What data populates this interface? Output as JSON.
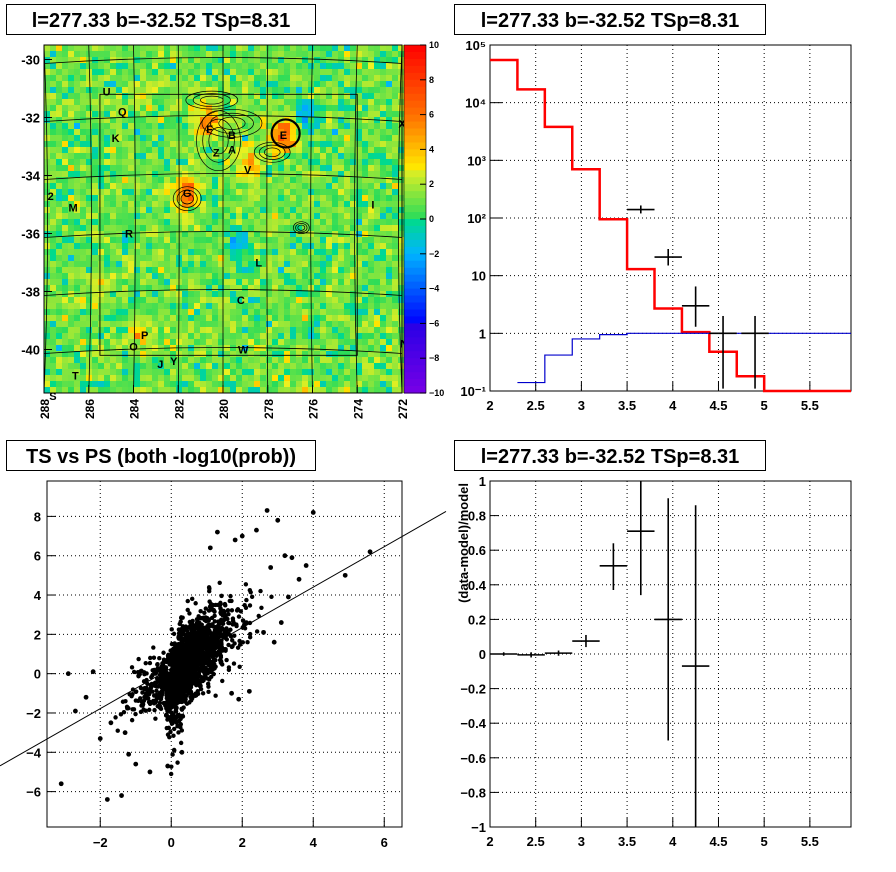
{
  "panels": [
    {
      "id": "map",
      "title": "l=277.33 b=-32.52 TSp=8.31"
    },
    {
      "id": "spectrum",
      "title": "l=277.33 b=-32.52 TSp=8.31"
    },
    {
      "id": "scatter",
      "title": "TS vs PS (both -log10(prob))"
    },
    {
      "id": "residual",
      "title": "l=277.33 b=-32.52 TSp=8.31"
    }
  ],
  "chart_data": [
    {
      "type": "heatmap",
      "title": "l=277.33 b=-32.52 TSp=8.31",
      "x_ticks": [
        "288",
        "286",
        "284",
        "282",
        "280",
        "278",
        "276",
        "274",
        "272"
      ],
      "y_ticks": [
        "-30",
        "-32",
        "-34",
        "-36",
        "-38",
        "-40"
      ],
      "colorbar": {
        "ticks": [
          "10",
          "8",
          "6",
          "4",
          "2",
          "0",
          "−2",
          "−4",
          "−6",
          "−8",
          "−10"
        ],
        "range": [
          -10,
          10
        ]
      },
      "source_labels": [
        {
          "t": "U",
          "l": 285.2,
          "b": -31.1
        },
        {
          "t": "Q",
          "l": 284.5,
          "b": -31.8
        },
        {
          "t": "K",
          "l": 284.8,
          "b": -32.7
        },
        {
          "t": "F",
          "l": 280.6,
          "b": -32.4
        },
        {
          "t": "B",
          "l": 279.6,
          "b": -32.6
        },
        {
          "t": "E",
          "l": 277.3,
          "b": -32.6
        },
        {
          "t": "X",
          "l": 272.0,
          "b": -32.2
        },
        {
          "t": "Z",
          "l": 280.3,
          "b": -33.2
        },
        {
          "t": "A",
          "l": 279.6,
          "b": -33.1
        },
        {
          "t": "V",
          "l": 278.9,
          "b": -33.8
        },
        {
          "t": "2",
          "l": 287.7,
          "b": -34.7
        },
        {
          "t": "M",
          "l": 286.7,
          "b": -35.1
        },
        {
          "t": "G",
          "l": 281.6,
          "b": -34.6
        },
        {
          "t": "I",
          "l": 273.3,
          "b": -35.0
        },
        {
          "t": "R",
          "l": 284.2,
          "b": -36.0
        },
        {
          "t": "L",
          "l": 278.4,
          "b": -37.0
        },
        {
          "t": "C",
          "l": 279.2,
          "b": -38.3
        },
        {
          "t": "P",
          "l": 283.5,
          "b": -39.5
        },
        {
          "t": "O",
          "l": 284.0,
          "b": -39.9
        },
        {
          "t": "W",
          "l": 279.1,
          "b": -40.0
        },
        {
          "t": "N",
          "l": 271.9,
          "b": -39.8
        },
        {
          "t": "J",
          "l": 282.8,
          "b": -40.5
        },
        {
          "t": "Y",
          "l": 282.2,
          "b": -40.4
        },
        {
          "t": "T",
          "l": 286.6,
          "b": -40.9
        },
        {
          "t": "S",
          "l": 287.6,
          "b": -41.6
        }
      ]
    },
    {
      "type": "line",
      "title": "l=277.33 b=-32.52 TSp=8.31",
      "x_ticks": [
        "2",
        "2.5",
        "3",
        "3.5",
        "4",
        "4.5",
        "5",
        "5.5"
      ],
      "y_ticks": [
        "10⁻¹",
        "1",
        "10",
        "10²",
        "10³",
        "10⁴",
        "10⁵"
      ],
      "xlim": [
        2,
        5.95
      ],
      "ylim": [
        0.1,
        100000
      ],
      "log_y": true,
      "series": [
        {
          "color": "#ff0000",
          "step_edges": [
            2,
            2.3,
            2.6,
            2.9,
            3.2,
            3.5,
            3.8,
            4.1,
            4.4,
            4.7,
            5.0,
            5.95
          ],
          "values": [
            55000,
            17000,
            3800,
            700,
            95,
            13,
            2.7,
            1.05,
            0.48,
            0.18,
            0.1
          ]
        },
        {
          "color": "#0000cc",
          "step_edges": [
            2.3,
            2.6,
            2.9,
            3.2,
            3.5,
            3.8,
            5.95
          ],
          "values": [
            0.14,
            0.42,
            0.8,
            0.95,
            1.0,
            1.0
          ]
        },
        {
          "color": "#000000",
          "points": [
            {
              "x": 3.65,
              "y": 140,
              "xerr": 0.15,
              "ylo": 120,
              "yhi": 165
            },
            {
              "x": 3.95,
              "y": 21,
              "xerr": 0.15,
              "ylo": 15,
              "yhi": 29
            },
            {
              "x": 4.25,
              "y": 3.0,
              "xerr": 0.15,
              "ylo": 1.3,
              "yhi": 6.5
            },
            {
              "x": 4.55,
              "y": 1.0,
              "xerr": 0.15,
              "ylo": 0.11,
              "yhi": 2.0
            },
            {
              "x": 4.9,
              "y": 1.0,
              "xerr": 0.15,
              "ylo": 0.11,
              "yhi": 2.0
            }
          ]
        }
      ]
    },
    {
      "type": "scatter",
      "title": "TS vs PS (both -log10(prob))",
      "x_ticks": [
        "−2",
        "0",
        "2",
        "4",
        "6"
      ],
      "y_ticks": [
        "−6",
        "−4",
        "−2",
        "0",
        "2",
        "4",
        "6",
        "8"
      ],
      "xlim": [
        -3.5,
        6.5
      ],
      "ylim": [
        -7.8,
        9.8
      ],
      "fit_line": {
        "slope": 1.03,
        "intercept": 0.28
      },
      "outliers": [
        [
          -3.1,
          -5.6
        ],
        [
          -2.7,
          -1.9
        ],
        [
          -2.4,
          -1.2
        ],
        [
          -2.2,
          0.1
        ],
        [
          -2.9,
          0.0
        ],
        [
          -1.4,
          -6.2
        ],
        [
          -1.8,
          -6.4
        ],
        [
          -1.7,
          -2.5
        ],
        [
          -1.3,
          -3.0
        ],
        [
          -1.2,
          -4.1
        ],
        [
          -1.0,
          -4.6
        ],
        [
          0.3,
          -4.0
        ],
        [
          -0.1,
          -4.7
        ],
        [
          -0.6,
          -5.0
        ],
        [
          1.8,
          6.8
        ],
        [
          2.4,
          7.3
        ],
        [
          2.7,
          8.3
        ],
        [
          3.0,
          7.8
        ],
        [
          3.4,
          5.9
        ],
        [
          3.8,
          5.5
        ],
        [
          4.0,
          8.2
        ],
        [
          4.9,
          5.0
        ],
        [
          5.6,
          6.2
        ],
        [
          1.3,
          7.2
        ],
        [
          2.0,
          7.0
        ],
        [
          3.2,
          6.0
        ],
        [
          3.3,
          3.9
        ],
        [
          3.6,
          4.8
        ],
        [
          2.8,
          5.4
        ],
        [
          1.1,
          6.4
        ],
        [
          2.6,
          2.1
        ],
        [
          3.1,
          2.6
        ],
        [
          2.9,
          1.6
        ],
        [
          1.5,
          2.2
        ],
        [
          1.7,
          -1.0
        ],
        [
          1.9,
          -1.3
        ],
        [
          2.2,
          -0.9
        ],
        [
          -2.0,
          -3.3
        ]
      ]
    },
    {
      "type": "scatter",
      "title": "l=277.33 b=-32.52 TSp=8.31",
      "ylabel": "(data-model)/model",
      "x_ticks": [
        "2",
        "2.5",
        "3",
        "3.5",
        "4",
        "4.5",
        "5",
        "5.5"
      ],
      "y_ticks": [
        "−1",
        "−0.8",
        "−0.6",
        "−0.4",
        "−0.2",
        "0",
        "0.2",
        "0.4",
        "0.6",
        "0.8",
        "1"
      ],
      "xlim": [
        2,
        5.95
      ],
      "ylim": [
        -1,
        1
      ],
      "points": [
        {
          "x": 2.15,
          "y": 0.0,
          "xerr": 0.15,
          "ylo": -0.01,
          "yhi": 0.01
        },
        {
          "x": 2.45,
          "y": -0.005,
          "xerr": 0.15,
          "ylo": -0.02,
          "yhi": 0.01
        },
        {
          "x": 2.75,
          "y": 0.005,
          "xerr": 0.15,
          "ylo": -0.01,
          "yhi": 0.02
        },
        {
          "x": 3.05,
          "y": 0.075,
          "xerr": 0.15,
          "ylo": 0.04,
          "yhi": 0.11
        },
        {
          "x": 3.35,
          "y": 0.51,
          "xerr": 0.15,
          "ylo": 0.37,
          "yhi": 0.64
        },
        {
          "x": 3.65,
          "y": 0.71,
          "xerr": 0.15,
          "ylo": 0.34,
          "yhi": 1.0
        },
        {
          "x": 3.95,
          "y": 0.2,
          "xerr": 0.15,
          "ylo": -0.5,
          "yhi": 0.9
        },
        {
          "x": 4.25,
          "y": -0.07,
          "xerr": 0.15,
          "ylo": -1.0,
          "yhi": 0.86
        }
      ]
    }
  ]
}
